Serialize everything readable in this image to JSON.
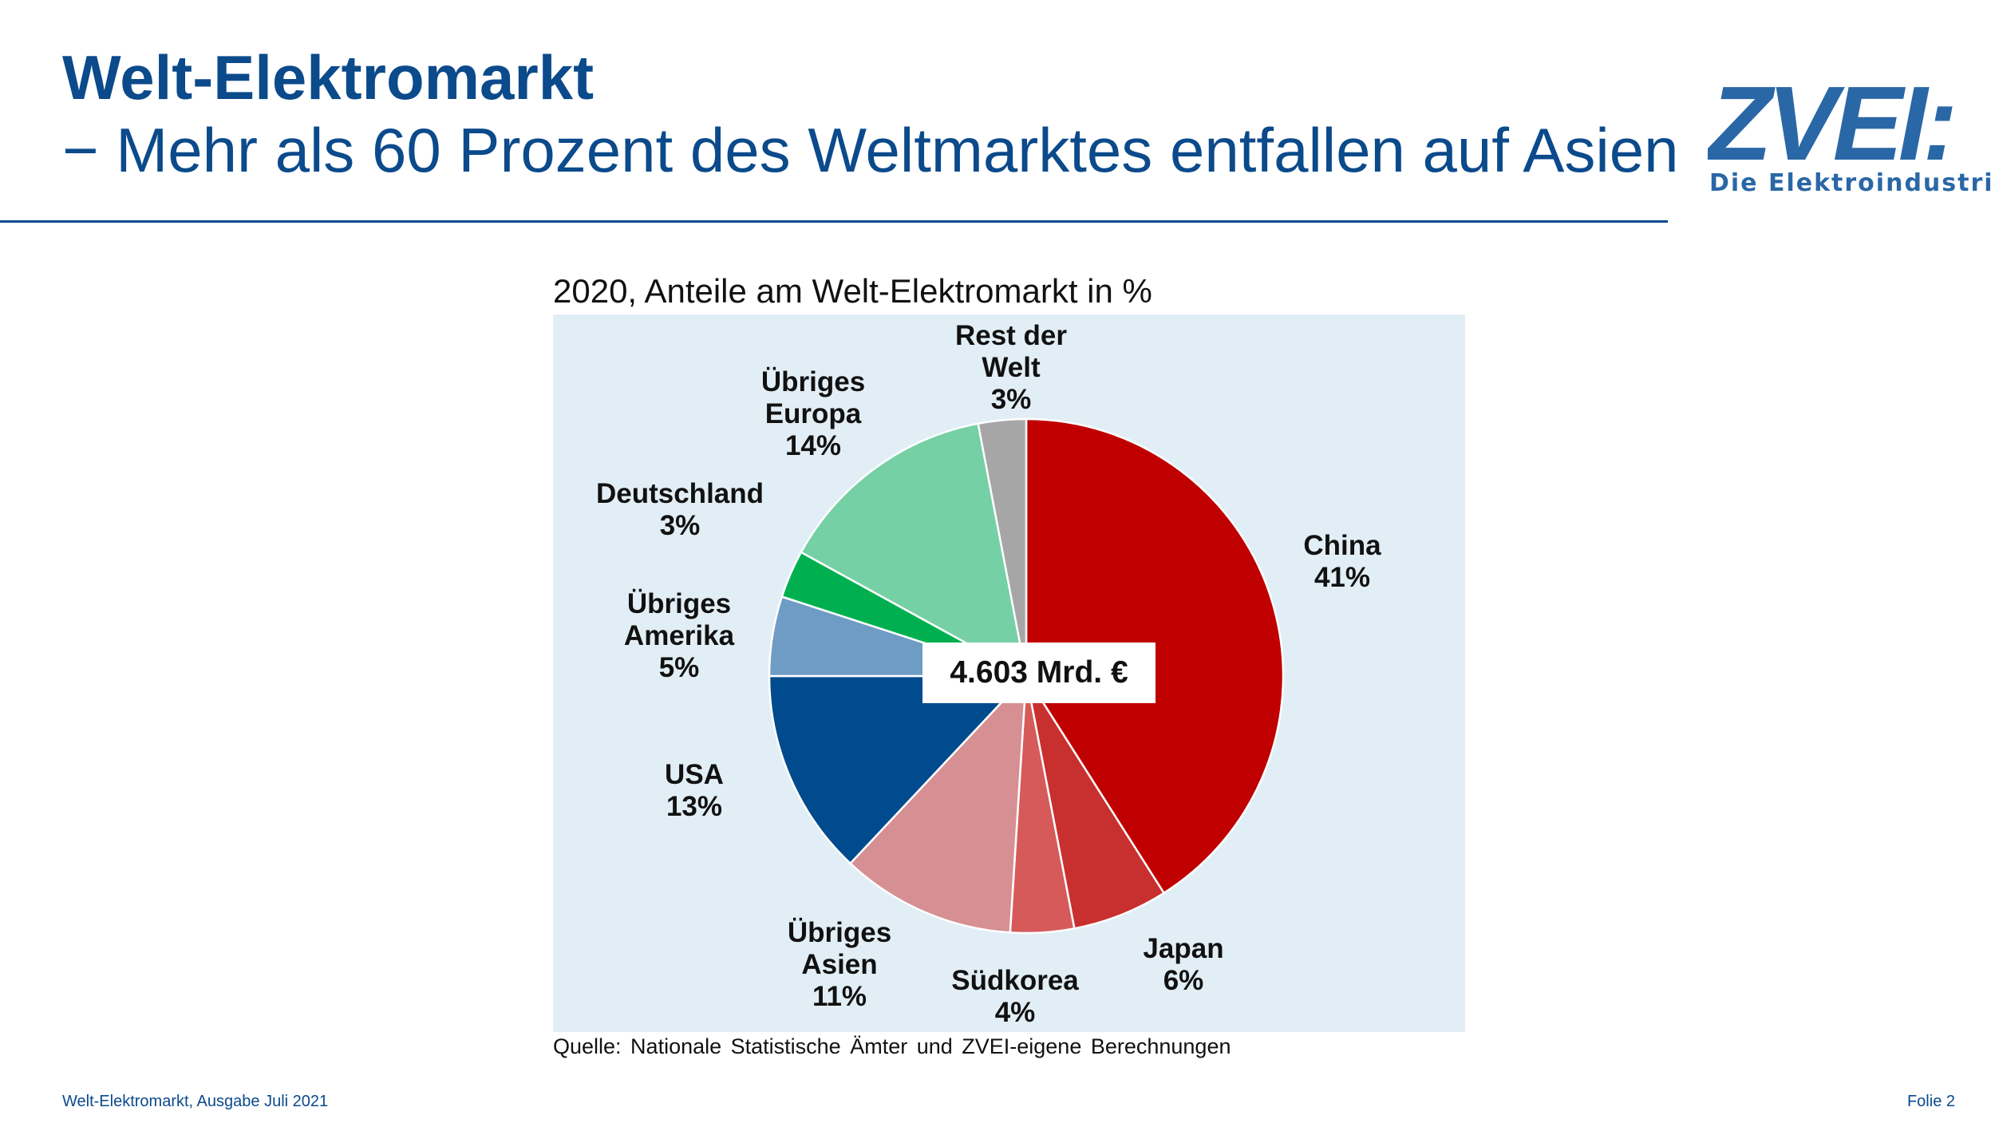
{
  "header": {
    "title": "Welt-Elektromarkt",
    "subtitle": "− Mehr als 60 Prozent des Weltmarktes entfallen auf Asien"
  },
  "logo": {
    "text": "ZVEI:",
    "tagline": "Die Elektroindustrie",
    "color": "#2a67a6",
    "accent_color": "#d0103a"
  },
  "chart_data": {
    "type": "pie",
    "title": "2020, Anteile am Welt-Elektromarkt in %",
    "center_label": "4.603 Mrd. €",
    "background": "#e2eef5",
    "slices": [
      {
        "label_lines": [
          "China"
        ],
        "value": 41,
        "value_label": "41%",
        "color": "#c00000"
      },
      {
        "label_lines": [
          "Japan"
        ],
        "value": 6,
        "value_label": "6%",
        "color": "#c8302f"
      },
      {
        "label_lines": [
          "Südkorea"
        ],
        "value": 4,
        "value_label": "4%",
        "color": "#d65a5a"
      },
      {
        "label_lines": [
          "Übriges",
          "Asien"
        ],
        "value": 11,
        "value_label": "11%",
        "color": "#d68f93"
      },
      {
        "label_lines": [
          "USA"
        ],
        "value": 13,
        "value_label": "13%",
        "color": "#004b8d"
      },
      {
        "label_lines": [
          "Übriges",
          "Amerika"
        ],
        "value": 5,
        "value_label": "5%",
        "color": "#6f9cc4"
      },
      {
        "label_lines": [
          "Deutschland"
        ],
        "value": 3,
        "value_label": "3%",
        "color": "#00b050"
      },
      {
        "label_lines": [
          "Übriges",
          "Europa"
        ],
        "value": 14,
        "value_label": "14%",
        "color": "#75d0a5"
      },
      {
        "label_lines": [
          "Rest der",
          "Welt"
        ],
        "value": 3,
        "value_label": "3%",
        "color": "#a6a6a6"
      }
    ]
  },
  "source": "Quelle: Nationale Statistische Ämter und ZVEI-eigene Berechnungen",
  "footer": {
    "left": "Welt-Elektromarkt, Ausgabe Juli 2021",
    "right": "Folie 2"
  }
}
